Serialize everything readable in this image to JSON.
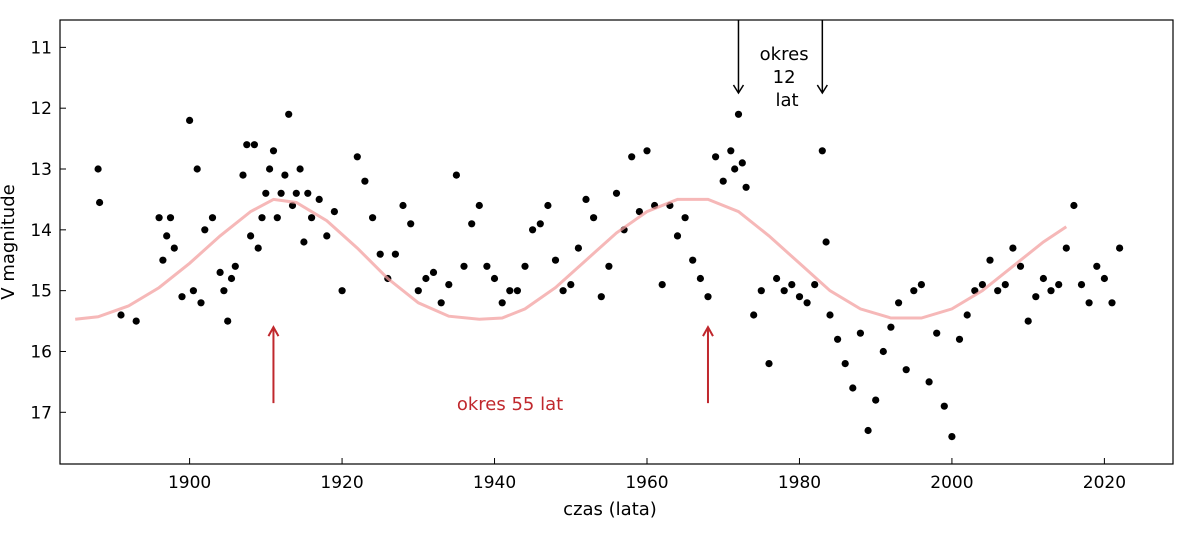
{
  "chart_data": {
    "type": "scatter",
    "title": "",
    "xlabel": "czas (lata)",
    "ylabel": "V magnitude",
    "xlim": [
      1883,
      2029
    ],
    "ylim": [
      17.85,
      10.55
    ],
    "y_inverted": true,
    "grid": false,
    "xticks": [
      1900,
      1920,
      1940,
      1960,
      1980,
      2000,
      2020
    ],
    "yticks": [
      11,
      12,
      13,
      14,
      15,
      16,
      17
    ],
    "series": [
      {
        "type": "scatter",
        "color": "#000000",
        "x": [
          1888,
          1888.2,
          1891,
          1893,
          1896,
          1896.5,
          1897,
          1897.5,
          1898,
          1899,
          1900,
          1900.5,
          1901,
          1901.5,
          1902,
          1903,
          1904,
          1904.5,
          1905,
          1905.5,
          1906,
          1907,
          1907.5,
          1908,
          1908.5,
          1909,
          1909.5,
          1910,
          1910.5,
          1911,
          1911.5,
          1912,
          1912.5,
          1913,
          1913.5,
          1914,
          1914.5,
          1915,
          1915.5,
          1916,
          1917,
          1918,
          1919,
          1920,
          1922,
          1923,
          1924,
          1925,
          1926,
          1927,
          1928,
          1929,
          1930,
          1931,
          1932,
          1933,
          1934,
          1935,
          1936,
          1937,
          1938,
          1939,
          1940,
          1941,
          1942,
          1943,
          1944,
          1945,
          1946,
          1947,
          1948,
          1949,
          1950,
          1951,
          1952,
          1953,
          1954,
          1955,
          1956,
          1957,
          1958,
          1959,
          1960,
          1961,
          1962,
          1963,
          1964,
          1965,
          1966,
          1967,
          1968,
          1969,
          1970,
          1971,
          1971.5,
          1972,
          1972.5,
          1973,
          1974,
          1975,
          1976,
          1977,
          1978,
          1979,
          1980,
          1981,
          1982,
          1983,
          1983.5,
          1984,
          1985,
          1986,
          1987,
          1988,
          1989,
          1990,
          1991,
          1992,
          1993,
          1994,
          1995,
          1996,
          1997,
          1998,
          1999,
          2000,
          2001,
          2002,
          2003,
          2004,
          2005,
          2006,
          2007,
          2008,
          2009,
          2010,
          2011,
          2012,
          2013,
          2014,
          2015,
          2016,
          2017,
          2018,
          2019,
          2020,
          2021,
          2022
        ],
        "y": [
          13.0,
          13.55,
          15.4,
          15.5,
          13.8,
          14.5,
          14.1,
          13.8,
          14.3,
          15.1,
          12.2,
          15.0,
          13.0,
          15.2,
          14.0,
          13.8,
          14.7,
          15.0,
          15.5,
          14.8,
          14.6,
          13.1,
          12.6,
          14.1,
          12.6,
          14.3,
          13.8,
          13.4,
          13.0,
          12.7,
          13.8,
          13.4,
          13.1,
          12.1,
          13.6,
          13.4,
          13.0,
          14.2,
          13.4,
          13.8,
          13.5,
          14.1,
          13.7,
          15.0,
          12.8,
          13.2,
          13.8,
          14.4,
          14.8,
          14.4,
          13.6,
          13.9,
          15.0,
          14.8,
          14.7,
          15.2,
          14.9,
          13.1,
          14.6,
          13.9,
          13.6,
          14.6,
          14.8,
          15.2,
          15.0,
          15.0,
          14.6,
          14.0,
          13.9,
          13.6,
          14.5,
          15.0,
          14.9,
          14.3,
          13.5,
          13.8,
          15.1,
          14.6,
          13.4,
          14.0,
          12.8,
          13.7,
          12.7,
          13.6,
          14.9,
          13.6,
          14.1,
          13.8,
          14.5,
          14.8,
          15.1,
          12.8,
          13.2,
          12.7,
          13.0,
          12.1,
          12.9,
          13.3,
          15.4,
          15.0,
          16.2,
          14.8,
          15.0,
          14.9,
          15.1,
          15.2,
          14.9,
          12.7,
          14.2,
          15.4,
          15.8,
          16.2,
          16.6,
          15.7,
          17.3,
          16.8,
          16.0,
          15.6,
          15.2,
          16.3,
          15.0,
          14.9,
          16.5,
          15.7,
          16.9,
          17.4,
          15.8,
          15.4,
          15.0,
          14.9,
          14.5,
          15.0,
          14.9,
          14.3,
          14.6,
          15.5,
          15.1,
          14.8,
          15.0,
          14.9,
          14.3,
          13.6,
          14.9,
          15.2,
          14.6,
          14.8,
          15.2,
          14.3
        ]
      },
      {
        "type": "line",
        "color": "#f3a0a0",
        "x": [
          1885,
          1888,
          1892,
          1896,
          1900,
          1904,
          1908,
          1911,
          1914,
          1918,
          1922,
          1926,
          1930,
          1934,
          1938,
          1941,
          1944,
          1948,
          1952,
          1956,
          1960,
          1964,
          1968,
          1972,
          1976,
          1980,
          1984,
          1988,
          1992,
          1996,
          2000,
          2004,
          2008,
          2012,
          2015
        ],
        "y": [
          15.47,
          15.43,
          15.25,
          14.95,
          14.55,
          14.1,
          13.7,
          13.5,
          13.55,
          13.85,
          14.3,
          14.8,
          15.2,
          15.42,
          15.47,
          15.45,
          15.3,
          14.95,
          14.5,
          14.05,
          13.7,
          13.5,
          13.5,
          13.7,
          14.1,
          14.55,
          15.0,
          15.3,
          15.45,
          15.45,
          15.3,
          15.0,
          14.6,
          14.2,
          13.95
        ]
      }
    ],
    "annotations": [
      {
        "lines": [
          "okres",
          "12",
          "lat"
        ],
        "color": "#000000"
      },
      {
        "text": "okres 55 lat",
        "color": "#c0282d"
      }
    ],
    "black_arrows": [
      {
        "x": 1972,
        "y_top": 10.55,
        "y_tip": 11.75
      },
      {
        "x": 1983,
        "y_top": 10.55,
        "y_tip": 11.75
      }
    ],
    "red_arrows": [
      {
        "x": 1911,
        "y_tip": 15.6,
        "y_base": 16.85
      },
      {
        "x": 1968,
        "y_tip": 15.6,
        "y_base": 16.85
      }
    ]
  }
}
